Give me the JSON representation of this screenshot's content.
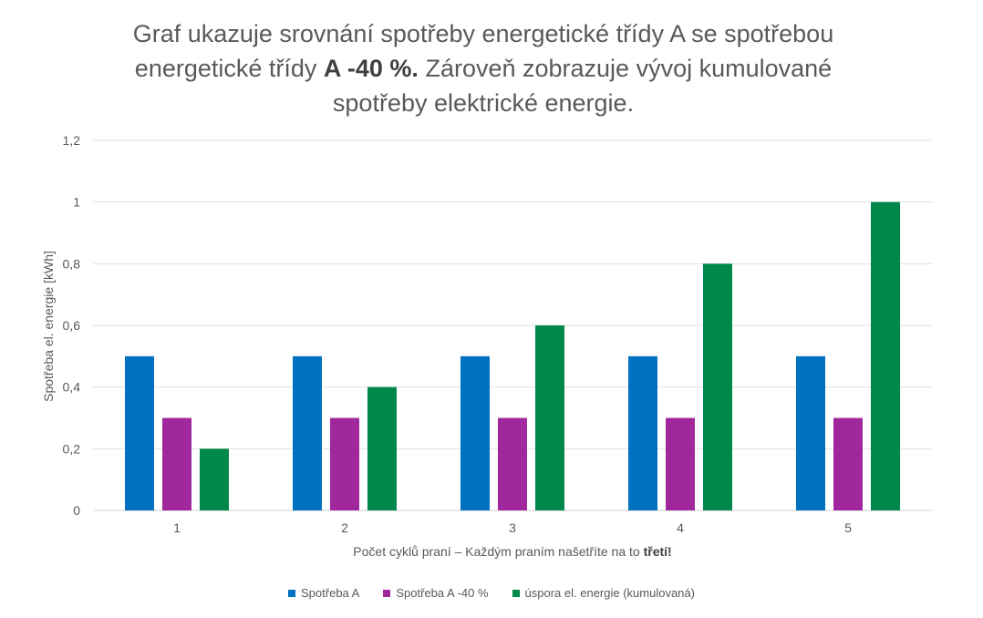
{
  "title": {
    "part1": "Graf ukazuje srovnání spotřeby energetické třídy A se spotřebou energetické třídy ",
    "bold": "A -40 %.",
    "part2": " Zároveň zobrazuje vývoj kumulované spotřeby elektrické energie."
  },
  "x_axis_title": {
    "text": "Počet cyklů praní – Každým praním našetříte na to ",
    "bold": "třetí!"
  },
  "y_axis_title": "Spotřeba el. energie [kWh]",
  "chart_data": {
    "type": "bar",
    "categories": [
      "1",
      "2",
      "3",
      "4",
      "5"
    ],
    "series": [
      {
        "name": "Spotřeba A",
        "color": "#0070C0",
        "values": [
          0.5,
          0.5,
          0.5,
          0.5,
          0.5
        ]
      },
      {
        "name": "Spotřeba A -40 %",
        "color": "#A0289C",
        "values": [
          0.3,
          0.3,
          0.3,
          0.3,
          0.3
        ]
      },
      {
        "name": "úspora el. energie (kumulovaná)",
        "color": "#00874A",
        "values": [
          0.2,
          0.4,
          0.6,
          0.8,
          1.0
        ]
      }
    ],
    "ylim": [
      0,
      1.2
    ],
    "yticks": [
      0,
      0.2,
      0.4,
      0.6,
      0.8,
      1,
      1.2
    ],
    "ytick_labels": [
      "0",
      "0,2",
      "0,4",
      "0,6",
      "0,8",
      "1",
      "1,2"
    ],
    "grid": true,
    "legend_position": "bottom"
  }
}
